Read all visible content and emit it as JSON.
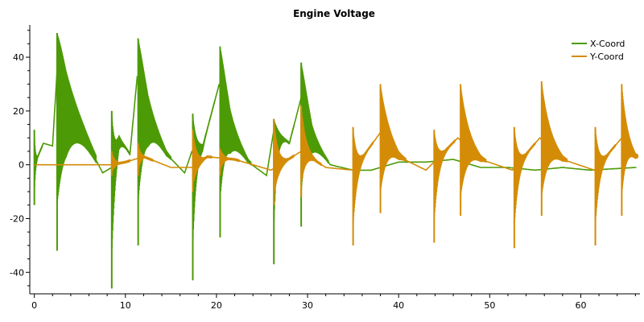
{
  "chart_data": {
    "type": "line",
    "title": "Engine Voltage",
    "xlabel": "",
    "ylabel": "",
    "xlim": [
      -0.5,
      66.5
    ],
    "ylim": [
      -48,
      52
    ],
    "x_ticks": [
      0,
      10,
      20,
      30,
      40,
      50,
      60
    ],
    "x_tick_labels": [
      "0",
      "10",
      "20",
      "30",
      "40",
      "50",
      "60"
    ],
    "y_ticks": [
      -40,
      -20,
      0,
      20,
      40
    ],
    "y_tick_labels": [
      "-40",
      "-20",
      "0",
      "20",
      "40"
    ],
    "grid": false,
    "legend_position": "top-right",
    "series": [
      {
        "name": "X-Coord",
        "color": "#4c9a05",
        "baseline": [
          [
            0,
            0
          ],
          [
            1,
            8
          ],
          [
            2,
            7
          ],
          [
            2.5,
            35
          ],
          [
            3.5,
            22
          ],
          [
            5.5,
            10
          ],
          [
            7.5,
            -3
          ],
          [
            8.5,
            -1
          ],
          [
            9.3,
            10
          ],
          [
            10.5,
            4
          ],
          [
            11.3,
            33
          ],
          [
            12.5,
            17
          ],
          [
            14.5,
            4
          ],
          [
            16.5,
            -3
          ],
          [
            17.3,
            5
          ],
          [
            18.5,
            7
          ],
          [
            20.3,
            30
          ],
          [
            21.5,
            12
          ],
          [
            23.5,
            1
          ],
          [
            25.5,
            -4
          ],
          [
            26.3,
            13
          ],
          [
            28,
            8
          ],
          [
            29.3,
            25
          ],
          [
            30.5,
            9
          ],
          [
            32.5,
            0
          ],
          [
            35,
            -2
          ],
          [
            37,
            -2
          ],
          [
            40,
            1
          ],
          [
            43,
            1
          ],
          [
            46,
            2
          ],
          [
            49,
            -1
          ],
          [
            52,
            -1
          ],
          [
            55,
            -2
          ],
          [
            58,
            -1
          ],
          [
            61,
            -2
          ],
          [
            66,
            -1
          ]
        ],
        "bursts": [
          {
            "start": 0.0,
            "end": 0.9,
            "hi": 13,
            "lo": -15,
            "decay": 0.45
          },
          {
            "start": 2.5,
            "end": 6.8,
            "hi": 49,
            "lo": -32,
            "decay": 1.0
          },
          {
            "start": 8.5,
            "end": 10.8,
            "hi": 20,
            "lo": -46,
            "decay": 0.5
          },
          {
            "start": 11.4,
            "end": 15.0,
            "hi": 47,
            "lo": -30,
            "decay": 0.8
          },
          {
            "start": 17.4,
            "end": 19.8,
            "hi": 19,
            "lo": -43,
            "decay": 0.5
          },
          {
            "start": 20.4,
            "end": 23.8,
            "hi": 44,
            "lo": -27,
            "decay": 0.8
          },
          {
            "start": 26.3,
            "end": 28.5,
            "hi": 17,
            "lo": -37,
            "decay": 0.5
          },
          {
            "start": 29.3,
            "end": 32.3,
            "hi": 38,
            "lo": -23,
            "decay": 0.8
          }
        ]
      },
      {
        "name": "Y-Coord",
        "color": "#d48c07",
        "baseline": [
          [
            0,
            0
          ],
          [
            5,
            0
          ],
          [
            8.5,
            0
          ],
          [
            10,
            1
          ],
          [
            12,
            3
          ],
          [
            15,
            -1
          ],
          [
            17.3,
            -1
          ],
          [
            19,
            3
          ],
          [
            22,
            2
          ],
          [
            26,
            -2
          ],
          [
            29.3,
            5
          ],
          [
            32,
            -1
          ],
          [
            35,
            -2
          ],
          [
            38,
            12
          ],
          [
            40,
            3
          ],
          [
            43,
            -2
          ],
          [
            46.5,
            10
          ],
          [
            49,
            2
          ],
          [
            52.5,
            -2
          ],
          [
            55.5,
            10
          ],
          [
            58,
            2
          ],
          [
            61.5,
            -2
          ],
          [
            64.5,
            10
          ],
          [
            66,
            3
          ]
        ],
        "bursts": [
          {
            "start": 8.5,
            "end": 10.5,
            "hi": 5,
            "lo": -4,
            "decay": 0.6
          },
          {
            "start": 11.4,
            "end": 13.0,
            "hi": 8,
            "lo": -4,
            "decay": 0.6
          },
          {
            "start": 17.4,
            "end": 19.5,
            "hi": 13,
            "lo": -10,
            "decay": 0.7
          },
          {
            "start": 20.4,
            "end": 22.5,
            "hi": 6,
            "lo": -4,
            "decay": 0.6
          },
          {
            "start": 26.3,
            "end": 28.5,
            "hi": 17,
            "lo": -15,
            "decay": 0.7
          },
          {
            "start": 29.3,
            "end": 31.5,
            "hi": 22,
            "lo": -12,
            "decay": 0.7
          },
          {
            "start": 35.0,
            "end": 37.2,
            "hi": 14,
            "lo": -30,
            "decay": 0.6
          },
          {
            "start": 38.0,
            "end": 40.8,
            "hi": 30,
            "lo": -18,
            "decay": 0.9
          },
          {
            "start": 43.9,
            "end": 46.2,
            "hi": 13,
            "lo": -29,
            "decay": 0.6
          },
          {
            "start": 46.8,
            "end": 49.6,
            "hi": 30,
            "lo": -19,
            "decay": 0.9
          },
          {
            "start": 52.7,
            "end": 55.0,
            "hi": 14,
            "lo": -31,
            "decay": 0.6
          },
          {
            "start": 55.7,
            "end": 58.5,
            "hi": 31,
            "lo": -19,
            "decay": 0.9
          },
          {
            "start": 61.6,
            "end": 63.8,
            "hi": 14,
            "lo": -30,
            "decay": 0.6
          },
          {
            "start": 64.5,
            "end": 66.3,
            "hi": 30,
            "lo": -19,
            "decay": 0.9
          }
        ]
      }
    ]
  }
}
